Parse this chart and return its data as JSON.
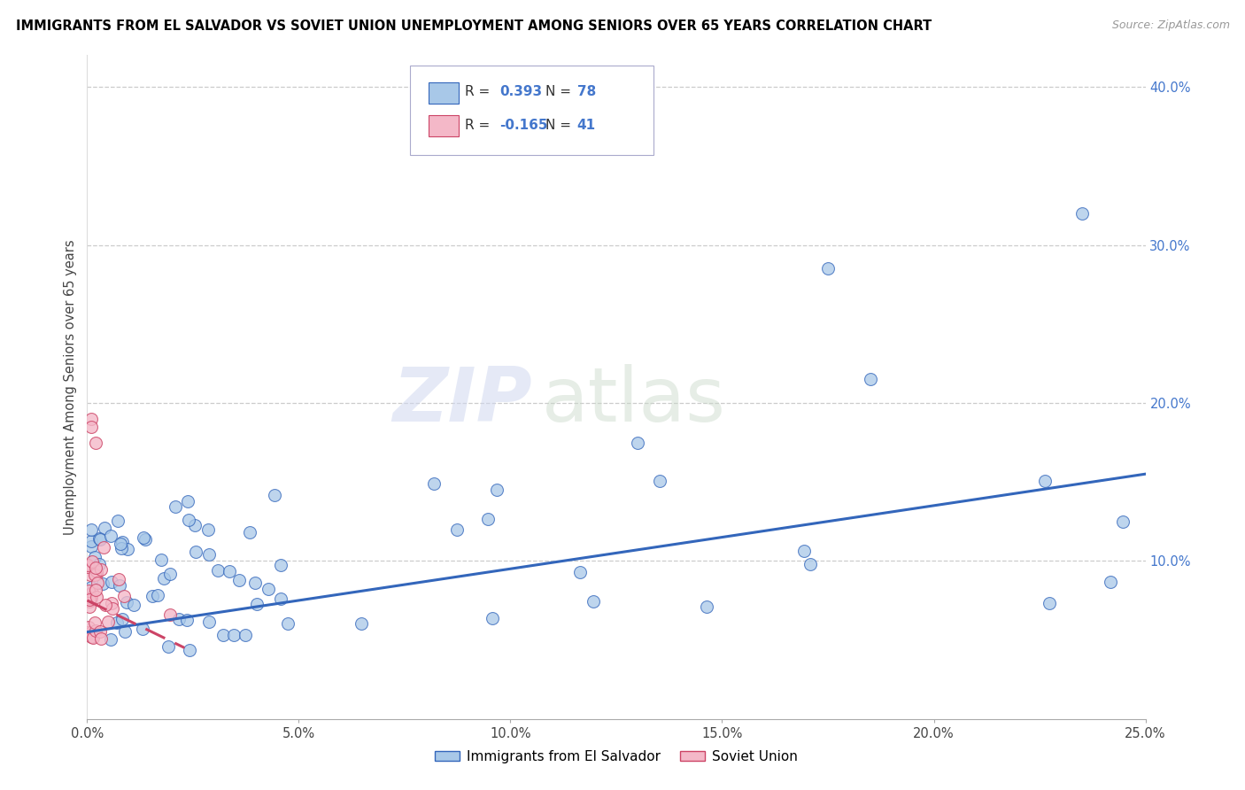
{
  "title": "IMMIGRANTS FROM EL SALVADOR VS SOVIET UNION UNEMPLOYMENT AMONG SENIORS OVER 65 YEARS CORRELATION CHART",
  "source": "Source: ZipAtlas.com",
  "ylabel": "Unemployment Among Seniors over 65 years",
  "xlabel_ticks": [
    "0.0%",
    "5.0%",
    "10.0%",
    "15.0%",
    "20.0%",
    "25.0%"
  ],
  "ylabel_ticks_right": [
    "40.0%",
    "30.0%",
    "20.0%",
    "10.0%",
    ""
  ],
  "ylabel_ticks_vals": [
    0.4,
    0.3,
    0.2,
    0.1,
    0.0
  ],
  "xlim": [
    0.0,
    0.25
  ],
  "ylim": [
    0.0,
    0.42
  ],
  "legend_labels": [
    "Immigrants from El Salvador",
    "Soviet Union"
  ],
  "color_blue": "#a8c8e8",
  "color_pink": "#f4b8c8",
  "line_blue": "#3366bb",
  "line_pink": "#cc4466",
  "watermark_zip": "ZIP",
  "watermark_atlas": "atlas",
  "blue_line_x": [
    0.0,
    0.25
  ],
  "blue_line_y": [
    0.055,
    0.155
  ],
  "pink_line_x": [
    0.0,
    0.023
  ],
  "pink_line_y": [
    0.075,
    0.045
  ]
}
